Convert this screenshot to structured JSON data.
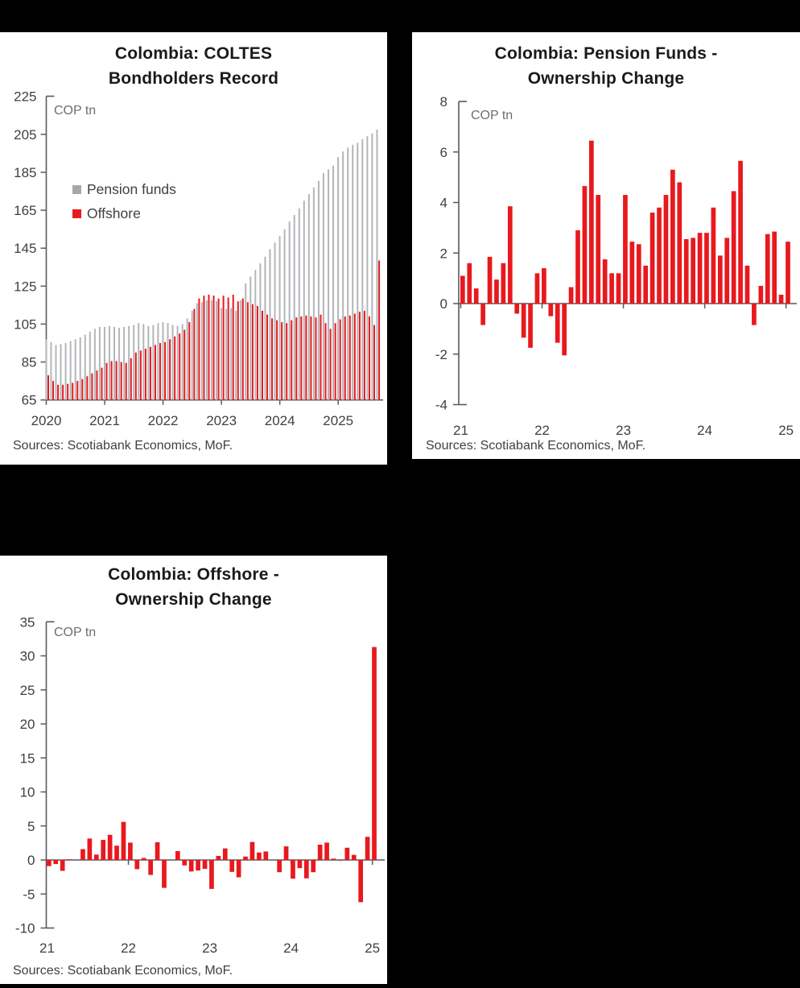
{
  "colors": {
    "background": "#000000",
    "panel": "#ffffff",
    "red": "#E8191E",
    "gray_bar": "#B3B5B8",
    "legend_gray": "#A6A8AB",
    "axis": "#58595B",
    "tick_text": "#414042",
    "title_text": "#1A1A1A",
    "muted_text": "#6D6E71"
  },
  "charts": [
    {
      "title_line1": "Colombia: COLTES",
      "title_line2": "Bondholders Record",
      "unit_label": "COP tn",
      "sources": "Sources: Scotiabank Economics, MoF.",
      "legend": [
        {
          "label": "Pension funds",
          "swatch": "legend_gray"
        },
        {
          "label": "Offshore",
          "swatch": "red"
        }
      ],
      "chart_data": {
        "type": "bar",
        "frequency": "monthly",
        "x_start": "2020-01",
        "x_end": "2025-09",
        "x_tick_labels": [
          "2020",
          "2021",
          "2022",
          "2023",
          "2024",
          "2025"
        ],
        "ylabel": "COP tn",
        "ylim": [
          65,
          225
        ],
        "y_ticks": [
          225,
          205,
          185,
          165,
          145,
          125,
          105,
          85,
          65
        ],
        "grid": false,
        "legend_position": "upper-left-inside",
        "series": [
          {
            "name": "Pension funds",
            "color": "gray_bar",
            "values": [
              97,
              95.5,
              94,
              94.5,
              95,
              96,
              97,
              98,
              99.5,
              101,
              102.5,
              103.5,
              103.5,
              104,
              103.5,
              103,
              103.5,
              104,
              104.5,
              105.5,
              105,
              104,
              104.5,
              105.5,
              106,
              105.5,
              104.5,
              104,
              105,
              108,
              112,
              116,
              116.5,
              117.5,
              117.5,
              117,
              113.5,
              113,
              113.5,
              112,
              117.5,
              126.5,
              130,
              133.5,
              137,
              140.5,
              144.5,
              148,
              151.5,
              155,
              159,
              162.5,
              166,
              170,
              173.5,
              177,
              180.5,
              184.5,
              186.5,
              188.5,
              193,
              196,
              198,
              199.5,
              200.5,
              202.5,
              204,
              205.5,
              207.5
            ]
          },
          {
            "name": "Offshore",
            "color": "red",
            "values": [
              78,
              75,
              73,
              73,
              73.5,
              74,
              75,
              76,
              77.5,
              79,
              80.5,
              82,
              84.5,
              85.5,
              85.5,
              85,
              84.5,
              87,
              90,
              91,
              92,
              93,
              94,
              95,
              95.5,
              97,
              98.5,
              100,
              102,
              106,
              113,
              118.5,
              120,
              120.5,
              120,
              118.5,
              120,
              119,
              120.5,
              117,
              118.5,
              116.5,
              115.5,
              114.5,
              112,
              110,
              108,
              107,
              106,
              105.5,
              107,
              108.5,
              109,
              109.5,
              109,
              108.5,
              110,
              105.5,
              102.5,
              105.5,
              107.5,
              109,
              109.5,
              110.5,
              111.5,
              112,
              109,
              104.5,
              138.5
            ]
          }
        ]
      }
    },
    {
      "title_line1": "Colombia: Pension Funds -",
      "title_line2": "Ownership Change",
      "unit_label": "COP tn",
      "sources": "Sources: Scotiabank Economics, MoF.",
      "legend": [],
      "chart_data": {
        "type": "bar",
        "frequency": "monthly",
        "x_start": "2021-01",
        "x_end": "2025-01",
        "x_tick_labels": [
          "21",
          "22",
          "23",
          "24",
          "25"
        ],
        "ylabel": "COP tn",
        "ylim": [
          -4,
          8
        ],
        "y_ticks": [
          8,
          6,
          4,
          2,
          0,
          -2,
          -4
        ],
        "grid": false,
        "series": [
          {
            "name": "Pension funds monthly change",
            "color": "red",
            "values": [
              1.1,
              1.6,
              0.6,
              -0.85,
              1.85,
              0.95,
              1.6,
              3.85,
              -0.4,
              -1.35,
              -1.75,
              1.2,
              1.4,
              -0.5,
              -1.55,
              -2.05,
              0.65,
              2.9,
              4.65,
              6.45,
              4.3,
              1.75,
              1.2,
              1.2,
              4.3,
              2.45,
              2.35,
              1.5,
              3.6,
              3.8,
              4.3,
              5.3,
              4.8,
              2.55,
              2.6,
              2.8,
              2.8,
              3.8,
              1.9,
              2.6,
              4.45,
              5.65,
              1.5,
              -0.85,
              0.7,
              2.75,
              2.85,
              0.35,
              2.45
            ]
          }
        ]
      }
    },
    {
      "title_line1": "Colombia: Offshore -",
      "title_line2": "Ownership Change",
      "unit_label": "COP tn",
      "sources": "Sources: Scotiabank Economics, MoF.",
      "legend": [],
      "chart_data": {
        "type": "bar",
        "frequency": "monthly",
        "x_start": "2021-01",
        "x_end": "2025-01",
        "x_tick_labels": [
          "21",
          "22",
          "23",
          "24",
          "25"
        ],
        "ylabel": "COP tn",
        "ylim": [
          -10,
          35
        ],
        "y_ticks": [
          35,
          30,
          25,
          20,
          15,
          10,
          5,
          0,
          -5,
          -10
        ],
        "grid": false,
        "series": [
          {
            "name": "Offshore monthly change",
            "color": "red",
            "values": [
              -0.9,
              -0.6,
              -1.6,
              0.1,
              0,
              1.6,
              3.15,
              0.8,
              2.95,
              3.7,
              2.1,
              5.6,
              2.55,
              -1.35,
              0.3,
              -2.2,
              2.6,
              -4.1,
              0,
              1.3,
              -0.8,
              -1.7,
              -1.55,
              -1.3,
              -4.25,
              0.6,
              1.7,
              -1.75,
              -2.55,
              0.5,
              2.65,
              1.1,
              1.25,
              0,
              -1.8,
              2.0,
              -2.75,
              -1.2,
              -2.7,
              -1.8,
              2.25,
              2.55,
              0.2,
              -0.1,
              1.8,
              0.75,
              -6.2,
              3.4,
              31.3
            ]
          }
        ]
      }
    }
  ]
}
